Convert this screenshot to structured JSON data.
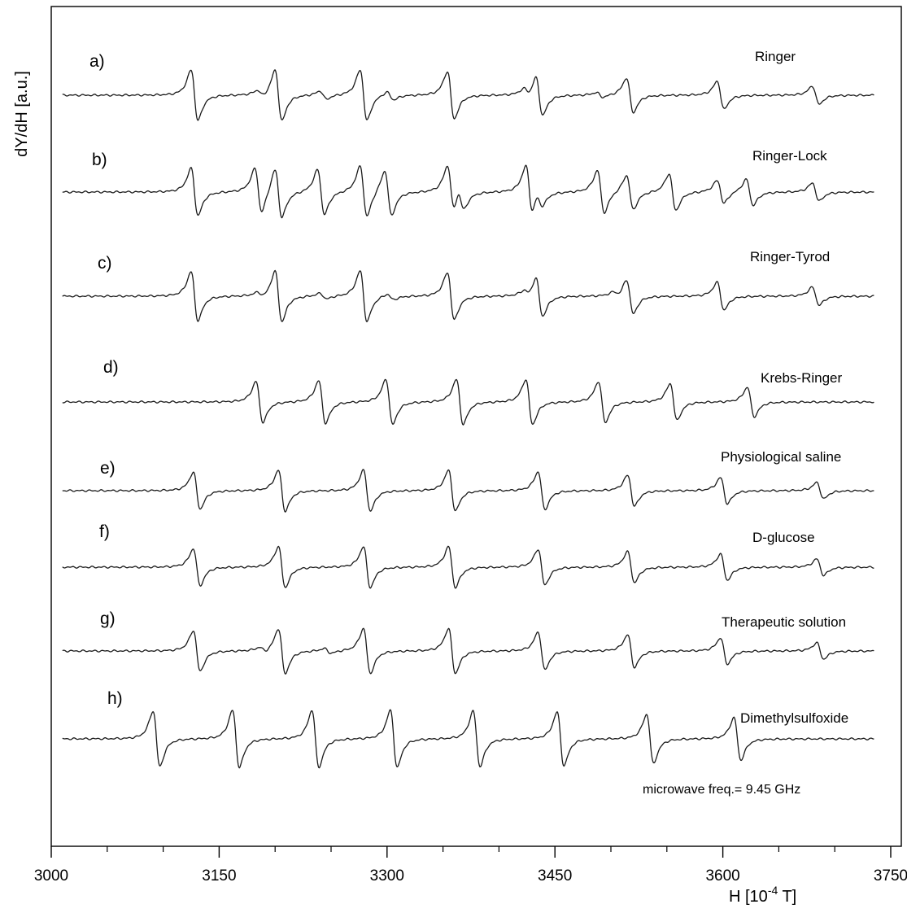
{
  "chart_data": {
    "type": "line",
    "title": "",
    "xlabel": "H [10",
    "xlabel_exp": "-4",
    "xlabel_unit": " T]",
    "ylabel": "dY/dH [a.u.]",
    "xlim": [
      3000,
      3750
    ],
    "x_ticks": [
      3000,
      3150,
      3300,
      3450,
      3600,
      3750
    ],
    "grid": false,
    "annotation": "microwave freq.= 9.45 GHz",
    "series": [
      {
        "letter": "a)",
        "name": "Ringer",
        "start": 3010,
        "end": 3735,
        "lines": [
          {
            "c": 3128,
            "a": 62
          },
          {
            "c": 3203,
            "a": 62
          },
          {
            "c": 3279,
            "a": 62
          },
          {
            "c": 3357,
            "a": 58
          },
          {
            "c": 3436,
            "a": 48
          },
          {
            "c": 3517,
            "a": 42
          },
          {
            "c": 3598,
            "a": 34
          },
          {
            "c": 3683,
            "a": 22
          },
          {
            "c": 3187,
            "a": 8
          },
          {
            "c": 3243,
            "a": 10
          },
          {
            "c": 3303,
            "a": 10
          },
          {
            "c": 3425,
            "a": 10
          },
          {
            "c": 3490,
            "a": 6
          }
        ]
      },
      {
        "letter": "b)",
        "name": "Ringer-Lock",
        "start": 3010,
        "end": 3735,
        "lines": [
          {
            "c": 3128,
            "a": 58
          },
          {
            "c": 3203,
            "a": 60
          },
          {
            "c": 3279,
            "a": 62
          },
          {
            "c": 3357,
            "a": 58
          },
          {
            "c": 3436,
            "a": 22
          },
          {
            "c": 3517,
            "a": 42
          },
          {
            "c": 3598,
            "a": 28
          },
          {
            "c": 3683,
            "a": 22
          },
          {
            "c": 3185,
            "a": 55
          },
          {
            "c": 3241,
            "a": 55
          },
          {
            "c": 3301,
            "a": 55
          },
          {
            "c": 3366,
            "a": 30
          },
          {
            "c": 3427,
            "a": 60
          },
          {
            "c": 3491,
            "a": 52
          },
          {
            "c": 3555,
            "a": 45
          },
          {
            "c": 3624,
            "a": 32
          }
        ]
      },
      {
        "letter": "c)",
        "name": "Ringer-Tyrod",
        "start": 3010,
        "end": 3735,
        "lines": [
          {
            "c": 3128,
            "a": 60
          },
          {
            "c": 3203,
            "a": 62
          },
          {
            "c": 3279,
            "a": 62
          },
          {
            "c": 3357,
            "a": 58
          },
          {
            "c": 3436,
            "a": 48
          },
          {
            "c": 3517,
            "a": 42
          },
          {
            "c": 3598,
            "a": 34
          },
          {
            "c": 3683,
            "a": 22
          },
          {
            "c": 3187,
            "a": 6
          },
          {
            "c": 3243,
            "a": 7
          },
          {
            "c": 3303,
            "a": 7
          },
          {
            "c": 3425,
            "a": 8
          },
          {
            "c": 3505,
            "a": 6
          }
        ]
      },
      {
        "letter": "d)",
        "name": "Krebs-Ringer",
        "start": 3010,
        "end": 3735,
        "lines": [
          {
            "c": 3186,
            "a": 50
          },
          {
            "c": 3242,
            "a": 52
          },
          {
            "c": 3302,
            "a": 55
          },
          {
            "c": 3365,
            "a": 55
          },
          {
            "c": 3427,
            "a": 55
          },
          {
            "c": 3492,
            "a": 50
          },
          {
            "c": 3556,
            "a": 45
          },
          {
            "c": 3625,
            "a": 36
          }
        ]
      },
      {
        "letter": "e)",
        "name": "Physiological saline",
        "start": 3010,
        "end": 3735,
        "lines": [
          {
            "c": 3130,
            "a": 45
          },
          {
            "c": 3206,
            "a": 50
          },
          {
            "c": 3282,
            "a": 50
          },
          {
            "c": 3358,
            "a": 50
          },
          {
            "c": 3438,
            "a": 46
          },
          {
            "c": 3518,
            "a": 38
          },
          {
            "c": 3601,
            "a": 32
          },
          {
            "c": 3687,
            "a": 20
          }
        ]
      },
      {
        "letter": "f)",
        "name": "D-glucose",
        "start": 3010,
        "end": 3735,
        "lines": [
          {
            "c": 3130,
            "a": 45
          },
          {
            "c": 3206,
            "a": 50
          },
          {
            "c": 3282,
            "a": 50
          },
          {
            "c": 3358,
            "a": 50
          },
          {
            "c": 3438,
            "a": 44
          },
          {
            "c": 3518,
            "a": 38
          },
          {
            "c": 3601,
            "a": 32
          },
          {
            "c": 3687,
            "a": 20
          }
        ]
      },
      {
        "letter": "g)",
        "name": "Therapeutic solution",
        "start": 3010,
        "end": 3735,
        "lines": [
          {
            "c": 3130,
            "a": 50
          },
          {
            "c": 3206,
            "a": 55
          },
          {
            "c": 3282,
            "a": 55
          },
          {
            "c": 3358,
            "a": 55
          },
          {
            "c": 3438,
            "a": 46
          },
          {
            "c": 3518,
            "a": 40
          },
          {
            "c": 3601,
            "a": 32
          },
          {
            "c": 3687,
            "a": 20
          },
          {
            "c": 3189,
            "a": 6
          },
          {
            "c": 3247,
            "a": 6
          }
        ]
      },
      {
        "letter": "h)",
        "name": "Dimethylsulfoxide",
        "start": 3010,
        "end": 3735,
        "lines": [
          {
            "c": 3094,
            "a": 68
          },
          {
            "c": 3165,
            "a": 70
          },
          {
            "c": 3236,
            "a": 70
          },
          {
            "c": 3306,
            "a": 70
          },
          {
            "c": 3380,
            "a": 68
          },
          {
            "c": 3455,
            "a": 66
          },
          {
            "c": 3535,
            "a": 60
          },
          {
            "c": 3613,
            "a": 52
          }
        ]
      }
    ]
  }
}
